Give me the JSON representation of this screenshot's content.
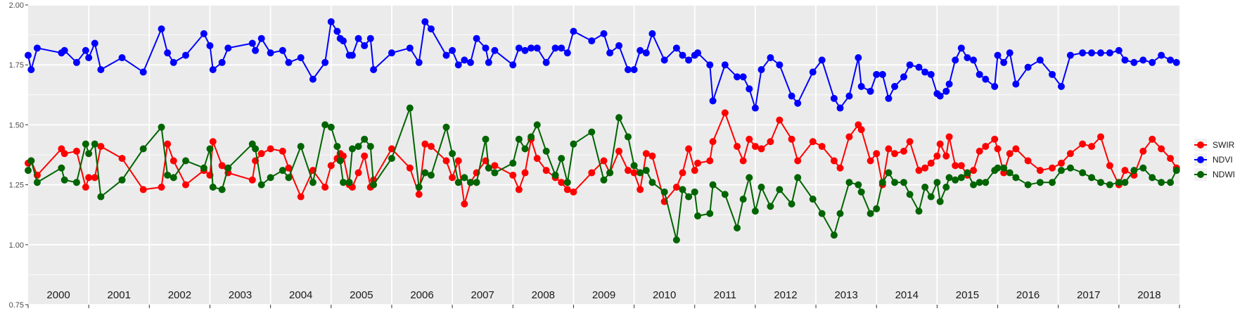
{
  "chart_data": {
    "type": "line",
    "title": "",
    "xlabel": "",
    "ylabel": "",
    "xlim": [
      2000.0,
      2019.0
    ],
    "ylim": [
      0.75,
      2.0
    ],
    "y_ticks": [
      0.75,
      1.0,
      1.25,
      1.5,
      1.75,
      2.0
    ],
    "y_tick_labels": [
      "0.75",
      "1.00",
      "1.25",
      "1.50",
      "1.75",
      "2.00"
    ],
    "year_labels": [
      "2000",
      "2001",
      "2002",
      "2003",
      "2004",
      "2005",
      "2006",
      "2007",
      "2008",
      "2009",
      "2010",
      "2011",
      "2012",
      "2013",
      "2014",
      "2015",
      "2016",
      "2017",
      "2018"
    ],
    "grid": true,
    "legend_position": "right",
    "colors": {
      "panel": "#ebebeb",
      "grid": "#ffffff",
      "SWIR": "#ff0000",
      "NDVI": "#0000ff",
      "NDWI": "#006400"
    },
    "x": [
      2000.0,
      2000.05,
      2000.15,
      2000.55,
      2000.6,
      2000.8,
      2000.95,
      2001.0,
      2001.1,
      2001.2,
      2001.55,
      2001.9,
      2002.2,
      2002.3,
      2002.4,
      2002.6,
      2002.9,
      2003.0,
      2003.05,
      2003.2,
      2003.3,
      2003.7,
      2003.75,
      2003.85,
      2004.0,
      2004.2,
      2004.3,
      2004.5,
      2004.7,
      2004.9,
      2005.0,
      2005.1,
      2005.15,
      2005.2,
      2005.3,
      2005.35,
      2005.45,
      2005.55,
      2005.65,
      2005.7,
      2006.0,
      2006.3,
      2006.45,
      2006.55,
      2006.65,
      2006.9,
      2007.0,
      2007.1,
      2007.2,
      2007.3,
      2007.4,
      2007.55,
      2007.6,
      2007.7,
      2008.0,
      2008.1,
      2008.2,
      2008.3,
      2008.4,
      2008.55,
      2008.7,
      2008.8,
      2008.9,
      2009.0,
      2009.3,
      2009.5,
      2009.6,
      2009.75,
      2009.9,
      2010.0,
      2010.1,
      2010.2,
      2010.3,
      2010.5,
      2010.7,
      2010.8,
      2010.9,
      2011.0,
      2011.05,
      2011.25,
      2011.3,
      2011.5,
      2011.7,
      2011.8,
      2011.9,
      2012.0,
      2012.1,
      2012.25,
      2012.4,
      2012.6,
      2012.7,
      2012.95,
      2013.1,
      2013.3,
      2013.4,
      2013.55,
      2013.7,
      2013.75,
      2013.9,
      2014.0,
      2014.1,
      2014.2,
      2014.3,
      2014.45,
      2014.55,
      2014.7,
      2014.8,
      2014.9,
      2015.0,
      2015.05,
      2015.15,
      2015.2,
      2015.3,
      2015.4,
      2015.5,
      2015.6,
      2015.7,
      2015.8,
      2015.95,
      2016.0,
      2016.1,
      2016.2,
      2016.3,
      2016.5,
      2016.7,
      2016.9,
      2017.05,
      2017.2,
      2017.4,
      2017.55,
      2017.7,
      2017.85,
      2018.0,
      2018.1,
      2018.25,
      2018.4,
      2018.55,
      2018.7,
      2018.85,
      2018.95
    ],
    "series": [
      {
        "name": "SWIR",
        "values": [
          1.34,
          1.35,
          1.29,
          1.4,
          1.38,
          1.39,
          1.24,
          1.28,
          1.28,
          1.41,
          1.36,
          1.23,
          1.24,
          1.42,
          1.35,
          1.25,
          1.31,
          1.29,
          1.43,
          1.33,
          1.3,
          1.27,
          1.35,
          1.38,
          1.4,
          1.39,
          1.32,
          1.2,
          1.31,
          1.24,
          1.33,
          1.36,
          1.38,
          1.37,
          1.25,
          1.24,
          1.3,
          1.37,
          1.24,
          1.27,
          1.4,
          1.32,
          1.21,
          1.42,
          1.41,
          1.35,
          1.28,
          1.35,
          1.17,
          1.26,
          1.3,
          1.35,
          1.32,
          1.33,
          1.29,
          1.23,
          1.3,
          1.44,
          1.36,
          1.31,
          1.28,
          1.26,
          1.23,
          1.22,
          1.3,
          1.35,
          1.3,
          1.39,
          1.31,
          1.3,
          1.23,
          1.38,
          1.37,
          1.18,
          1.24,
          1.3,
          1.4,
          1.31,
          1.34,
          1.35,
          1.43,
          1.55,
          1.41,
          1.35,
          1.44,
          1.41,
          1.4,
          1.43,
          1.52,
          1.44,
          1.35,
          1.43,
          1.41,
          1.35,
          1.32,
          1.45,
          1.5,
          1.48,
          1.35,
          1.38,
          1.25,
          1.4,
          1.38,
          1.39,
          1.43,
          1.31,
          1.32,
          1.34,
          1.37,
          1.42,
          1.37,
          1.45,
          1.33,
          1.33,
          1.29,
          1.31,
          1.39,
          1.41,
          1.44,
          1.4,
          1.3,
          1.38,
          1.4,
          1.35,
          1.31,
          1.32,
          1.34,
          1.38,
          1.42,
          1.41,
          1.45,
          1.33,
          1.25,
          1.31,
          1.29,
          1.39,
          1.44,
          1.4,
          1.36,
          1.32
        ]
      },
      {
        "name": "NDVI",
        "values": [
          1.79,
          1.73,
          1.82,
          1.8,
          1.81,
          1.76,
          1.81,
          1.78,
          1.84,
          1.73,
          1.78,
          1.72,
          1.9,
          1.8,
          1.76,
          1.79,
          1.88,
          1.83,
          1.73,
          1.76,
          1.82,
          1.84,
          1.81,
          1.86,
          1.8,
          1.81,
          1.76,
          1.78,
          1.69,
          1.76,
          1.93,
          1.89,
          1.86,
          1.85,
          1.79,
          1.79,
          1.86,
          1.83,
          1.86,
          1.73,
          1.8,
          1.82,
          1.76,
          1.93,
          1.9,
          1.79,
          1.81,
          1.75,
          1.77,
          1.76,
          1.86,
          1.82,
          1.76,
          1.81,
          1.75,
          1.82,
          1.81,
          1.82,
          1.82,
          1.76,
          1.82,
          1.82,
          1.8,
          1.89,
          1.85,
          1.88,
          1.8,
          1.83,
          1.73,
          1.73,
          1.81,
          1.8,
          1.88,
          1.77,
          1.82,
          1.79,
          1.77,
          1.79,
          1.8,
          1.75,
          1.6,
          1.75,
          1.7,
          1.7,
          1.65,
          1.57,
          1.73,
          1.78,
          1.75,
          1.62,
          1.59,
          1.72,
          1.77,
          1.61,
          1.57,
          1.62,
          1.78,
          1.66,
          1.64,
          1.71,
          1.71,
          1.61,
          1.66,
          1.7,
          1.75,
          1.74,
          1.72,
          1.71,
          1.63,
          1.62,
          1.64,
          1.67,
          1.77,
          1.82,
          1.78,
          1.77,
          1.71,
          1.69,
          1.66,
          1.79,
          1.76,
          1.8,
          1.67,
          1.74,
          1.77,
          1.71,
          1.66,
          1.79,
          1.8,
          1.8,
          1.8,
          1.8,
          1.81,
          1.77,
          1.76,
          1.77,
          1.76,
          1.79,
          1.77,
          1.76
        ]
      },
      {
        "name": "NDWI",
        "values": [
          1.31,
          1.35,
          1.26,
          1.32,
          1.27,
          1.26,
          1.42,
          1.38,
          1.42,
          1.2,
          1.27,
          1.4,
          1.49,
          1.29,
          1.28,
          1.35,
          1.32,
          1.4,
          1.24,
          1.23,
          1.32,
          1.42,
          1.4,
          1.25,
          1.28,
          1.31,
          1.28,
          1.41,
          1.26,
          1.5,
          1.49,
          1.41,
          1.35,
          1.26,
          1.26,
          1.4,
          1.41,
          1.44,
          1.41,
          1.25,
          1.36,
          1.57,
          1.24,
          1.3,
          1.29,
          1.49,
          1.38,
          1.26,
          1.28,
          1.26,
          1.26,
          1.44,
          1.32,
          1.3,
          1.34,
          1.44,
          1.4,
          1.45,
          1.5,
          1.39,
          1.29,
          1.36,
          1.26,
          1.42,
          1.47,
          1.27,
          1.3,
          1.53,
          1.45,
          1.33,
          1.3,
          1.31,
          1.26,
          1.22,
          1.02,
          1.23,
          1.2,
          1.22,
          1.12,
          1.13,
          1.25,
          1.21,
          1.07,
          1.19,
          1.28,
          1.14,
          1.24,
          1.16,
          1.23,
          1.17,
          1.28,
          1.19,
          1.13,
          1.04,
          1.13,
          1.26,
          1.25,
          1.22,
          1.13,
          1.15,
          1.26,
          1.3,
          1.26,
          1.26,
          1.21,
          1.14,
          1.24,
          1.2,
          1.26,
          1.18,
          1.24,
          1.28,
          1.27,
          1.28,
          1.3,
          1.25,
          1.26,
          1.26,
          1.31,
          1.32,
          1.32,
          1.3,
          1.28,
          1.25,
          1.26,
          1.26,
          1.31,
          1.32,
          1.3,
          1.28,
          1.26,
          1.25,
          1.26,
          1.26,
          1.31,
          1.32,
          1.28,
          1.26,
          1.26,
          1.31
        ]
      }
    ]
  }
}
